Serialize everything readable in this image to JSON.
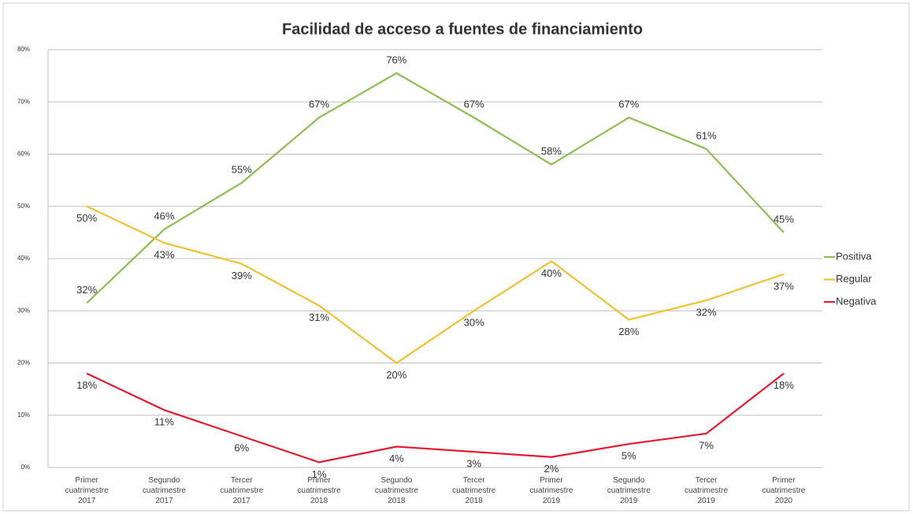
{
  "chart_data": {
    "type": "line",
    "title": "Facilidad de acceso a fuentes de financiamiento",
    "categories": [
      "Primer cuatrimestre 2017",
      "Segundo cuatrimestre 2017",
      "Tercer cuatrimestre 2017",
      "Primer cuatrimestre 2018",
      "Segundo cuatrimestre 2018",
      "Tercer cuatrimestre 2018",
      "Primer cuatrimestre 2019",
      "Segundo cuatrimestre 2019",
      "Tercer cuatrimestre 2019",
      "Primer cuatrimestre 2020"
    ],
    "series": [
      {
        "name": "Positiva",
        "color": "#8cbf50",
        "values": [
          31.5,
          45.6,
          54.5,
          67,
          75.5,
          67,
          58,
          67,
          61,
          45
        ],
        "value_labels": [
          "32%",
          "46%",
          "55%",
          "67%",
          "76%",
          "67%",
          "58%",
          "67%",
          "61%",
          "45%"
        ]
      },
      {
        "name": "Regular",
        "color": "#f2c12e",
        "values": [
          50,
          43,
          39,
          31,
          20,
          30,
          39.5,
          28.3,
          32,
          37
        ],
        "value_labels": [
          "50%",
          "43%",
          "39%",
          "31%",
          "20%",
          "30%",
          "40%",
          "28%",
          "32%",
          "37%"
        ]
      },
      {
        "name": "Negativa",
        "color": "#e8192c",
        "values": [
          18,
          11,
          6,
          1,
          4,
          3,
          2,
          4.5,
          6.5,
          18
        ],
        "value_labels": [
          "18%",
          "11%",
          "6%",
          "1%",
          "4%",
          "3%",
          "2%",
          "5%",
          "7%",
          "18%"
        ]
      }
    ],
    "ylim": [
      0,
      80
    ],
    "yticks": [
      {
        "value": 0,
        "label": "0%"
      },
      {
        "value": 10,
        "label": "10%"
      },
      {
        "value": 20,
        "label": "20%"
      },
      {
        "value": 30,
        "label": "30%"
      },
      {
        "value": 40,
        "label": "40%"
      },
      {
        "value": 50,
        "label": "50%"
      },
      {
        "value": 60,
        "label": "60%"
      },
      {
        "value": 70,
        "label": "70%"
      },
      {
        "value": 80,
        "label": "80%"
      }
    ],
    "grid": true,
    "legend": "right"
  }
}
